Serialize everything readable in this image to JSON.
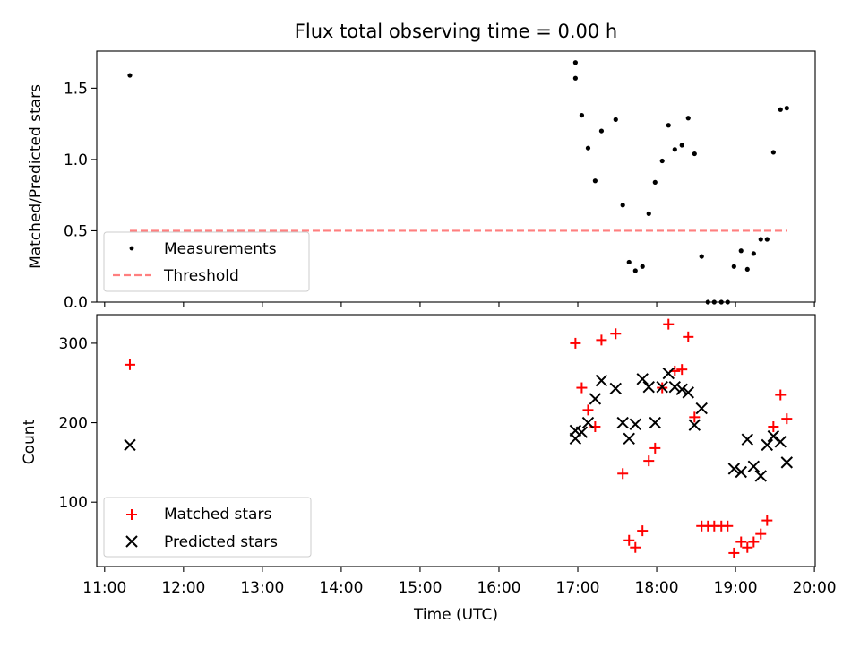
{
  "chart_data": {
    "title": "Flux total observing time = 0.00 h",
    "xlabel": "Time (UTC)",
    "x_ticks": [
      "11:00",
      "12:00",
      "13:00",
      "14:00",
      "15:00",
      "16:00",
      "17:00",
      "18:00",
      "19:00",
      "20:00"
    ],
    "x_range_hours": [
      10.9,
      20.01
    ],
    "panels": [
      {
        "type": "scatter",
        "ylabel": "Matched/Predicted stars",
        "ylim": [
          0,
          1.76
        ],
        "y_ticks": [
          "0.0",
          "0.5",
          "1.0",
          "1.5"
        ],
        "legend_position": "lower-left",
        "series": [
          {
            "name": "Measurements",
            "marker": "dot",
            "color": "#000000",
            "x": [
              11.32,
              16.97,
              16.97,
              17.05,
              17.13,
              17.22,
              17.3,
              17.48,
              17.57,
              17.65,
              17.73,
              17.82,
              17.9,
              17.98,
              18.07,
              18.15,
              18.23,
              18.32,
              18.4,
              18.48,
              18.57,
              18.65,
              18.73,
              18.82,
              18.9,
              18.98,
              19.07,
              19.15,
              19.23,
              19.32,
              19.4,
              19.48,
              19.57,
              19.65
            ],
            "y": [
              1.59,
              1.68,
              1.57,
              1.31,
              1.08,
              0.85,
              1.2,
              1.28,
              0.68,
              0.28,
              0.22,
              0.25,
              0.62,
              0.84,
              0.99,
              1.24,
              1.07,
              1.1,
              1.29,
              1.04,
              0.32,
              0.0,
              0.0,
              0.0,
              0.0,
              0.25,
              0.36,
              0.23,
              0.34,
              0.44,
              0.44,
              1.05,
              1.35,
              1.36
            ]
          },
          {
            "name": "Threshold",
            "marker": "dashed-line",
            "color": "#ff7f7f",
            "x": [
              11.32,
              19.65
            ],
            "y": [
              0.5,
              0.5
            ]
          }
        ]
      },
      {
        "type": "scatter",
        "ylabel": "Count",
        "ylim": [
          19,
          336
        ],
        "y_ticks": [
          "100",
          "200",
          "300"
        ],
        "legend_position": "lower-left",
        "series": [
          {
            "name": "Matched stars",
            "marker": "plus",
            "color": "#ff0000",
            "x": [
              11.32,
              16.97,
              17.05,
              17.13,
              17.22,
              17.3,
              17.48,
              17.57,
              17.65,
              17.73,
              17.82,
              17.9,
              17.98,
              18.07,
              18.15,
              18.23,
              18.32,
              18.4,
              18.48,
              18.57,
              18.65,
              18.73,
              18.82,
              18.9,
              18.98,
              19.07,
              19.15,
              19.23,
              19.32,
              19.4,
              19.48,
              19.57,
              19.65
            ],
            "y": [
              273,
              300,
              244,
              216,
              195,
              304,
              312,
              136,
              52,
              43,
              64,
              152,
              168,
              244,
              324,
              265,
              267,
              308,
              207,
              70,
              70,
              70,
              70,
              70,
              36,
              50,
              43,
              50,
              60,
              77,
              195,
              235,
              205
            ]
          },
          {
            "name": "Predicted stars",
            "marker": "x",
            "color": "#000000",
            "x": [
              11.32,
              16.97,
              16.97,
              17.05,
              17.13,
              17.22,
              17.3,
              17.48,
              17.57,
              17.65,
              17.73,
              17.82,
              17.9,
              17.98,
              18.07,
              18.15,
              18.23,
              18.32,
              18.4,
              18.48,
              18.57,
              18.98,
              19.07,
              19.15,
              19.23,
              19.32,
              19.4,
              19.48,
              19.57,
              19.65
            ],
            "y": [
              172,
              190,
              180,
              188,
              200,
              230,
              253,
              243,
              200,
              180,
              198,
              255,
              245,
              200,
              245,
              262,
              245,
              242,
              238,
              197,
              218,
              142,
              138,
              179,
              145,
              133,
              172,
              183,
              176,
              150
            ]
          }
        ]
      }
    ]
  }
}
